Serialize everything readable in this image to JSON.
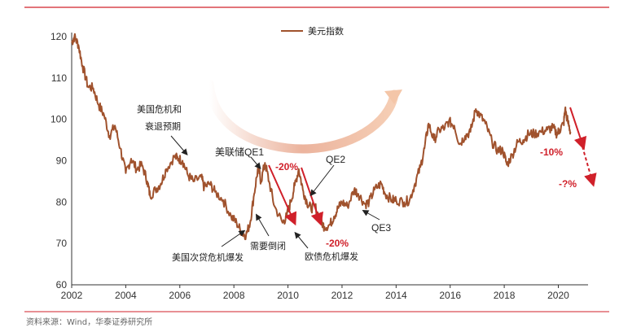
{
  "chart_data": {
    "type": "line",
    "title": "",
    "xlabel": "",
    "ylabel": "",
    "xlim": [
      2002,
      2021
    ],
    "ylim": [
      60,
      122
    ],
    "grid": false,
    "legend_position": "top-center",
    "x_ticks": [
      "2002",
      "2004",
      "2006",
      "2008",
      "2010",
      "2012",
      "2014",
      "2016",
      "2018",
      "2020"
    ],
    "y_ticks": [
      "60",
      "70",
      "80",
      "90",
      "100",
      "110",
      "120"
    ],
    "series": [
      {
        "name": "美元指数",
        "color": "#a0522d",
        "points": [
          [
            2002.0,
            118.5
          ],
          [
            2002.1,
            120.0
          ],
          [
            2002.25,
            118.0
          ],
          [
            2002.4,
            113.0
          ],
          [
            2002.6,
            108.0
          ],
          [
            2002.8,
            107.5
          ],
          [
            2003.0,
            103.5
          ],
          [
            2003.2,
            101.0
          ],
          [
            2003.4,
            96.0
          ],
          [
            2003.6,
            98.5
          ],
          [
            2003.8,
            93.0
          ],
          [
            2004.0,
            87.0
          ],
          [
            2004.2,
            90.5
          ],
          [
            2004.4,
            88.0
          ],
          [
            2004.6,
            89.0
          ],
          [
            2004.8,
            85.0
          ],
          [
            2004.9,
            81.5
          ],
          [
            2005.1,
            83.0
          ],
          [
            2005.3,
            84.5
          ],
          [
            2005.5,
            88.0
          ],
          [
            2005.8,
            91.0
          ],
          [
            2005.95,
            90.5
          ],
          [
            2006.1,
            90.0
          ],
          [
            2006.3,
            86.5
          ],
          [
            2006.5,
            85.0
          ],
          [
            2006.8,
            86.0
          ],
          [
            2006.9,
            83.5
          ],
          [
            2007.1,
            84.5
          ],
          [
            2007.3,
            82.5
          ],
          [
            2007.6,
            80.5
          ],
          [
            2007.9,
            76.5
          ],
          [
            2008.1,
            75.0
          ],
          [
            2008.3,
            72.5
          ],
          [
            2008.45,
            72.0
          ],
          [
            2008.6,
            75.0
          ],
          [
            2008.75,
            82.0
          ],
          [
            2008.9,
            88.5
          ],
          [
            2009.0,
            85.0
          ],
          [
            2009.15,
            89.5
          ],
          [
            2009.3,
            85.0
          ],
          [
            2009.5,
            79.0
          ],
          [
            2009.8,
            75.0
          ],
          [
            2009.95,
            76.5
          ],
          [
            2010.1,
            80.0
          ],
          [
            2010.25,
            84.0
          ],
          [
            2010.4,
            88.0
          ],
          [
            2010.55,
            83.0
          ],
          [
            2010.7,
            80.0
          ],
          [
            2010.85,
            78.5
          ],
          [
            2011.0,
            79.0
          ],
          [
            2011.2,
            75.5
          ],
          [
            2011.35,
            74.0
          ],
          [
            2011.55,
            74.5
          ],
          [
            2011.7,
            76.5
          ],
          [
            2011.85,
            78.5
          ],
          [
            2012.0,
            80.0
          ],
          [
            2012.2,
            79.0
          ],
          [
            2012.45,
            83.0
          ],
          [
            2012.6,
            82.0
          ],
          [
            2012.85,
            79.5
          ],
          [
            2013.0,
            80.0
          ],
          [
            2013.2,
            83.0
          ],
          [
            2013.45,
            84.5
          ],
          [
            2013.6,
            82.0
          ],
          [
            2013.85,
            80.5
          ],
          [
            2014.0,
            80.5
          ],
          [
            2014.3,
            80.0
          ],
          [
            2014.5,
            80.5
          ],
          [
            2014.7,
            84.5
          ],
          [
            2014.9,
            88.5
          ],
          [
            2015.05,
            93.0
          ],
          [
            2015.2,
            99.0
          ],
          [
            2015.4,
            95.0
          ],
          [
            2015.6,
            97.5
          ],
          [
            2015.8,
            98.0
          ],
          [
            2015.95,
            99.5
          ],
          [
            2016.15,
            98.5
          ],
          [
            2016.35,
            94.0
          ],
          [
            2016.55,
            96.0
          ],
          [
            2016.75,
            97.0
          ],
          [
            2016.95,
            102.5
          ],
          [
            2017.1,
            101.0
          ],
          [
            2017.3,
            99.0
          ],
          [
            2017.55,
            94.5
          ],
          [
            2017.75,
            92.5
          ],
          [
            2017.95,
            92.5
          ],
          [
            2018.1,
            89.0
          ],
          [
            2018.3,
            91.5
          ],
          [
            2018.5,
            94.5
          ],
          [
            2018.7,
            95.0
          ],
          [
            2018.9,
            96.5
          ],
          [
            2019.1,
            96.5
          ],
          [
            2019.35,
            97.0
          ],
          [
            2019.6,
            97.5
          ],
          [
            2019.8,
            98.0
          ],
          [
            2019.95,
            96.5
          ],
          [
            2020.05,
            97.5
          ],
          [
            2020.2,
            99.0
          ],
          [
            2020.25,
            102.5
          ],
          [
            2020.35,
            99.5
          ],
          [
            2020.45,
            97.0
          ]
        ]
      }
    ],
    "annotations": {
      "crisis_expect": [
        "美国危机和",
        "衰退预期"
      ],
      "fed_qe1": "美联储QE1",
      "qe2": "QE2",
      "qe3": "QE3",
      "subprime": "美国次贷危机爆发",
      "demand": "需要倒闭",
      "eurodebt": "欧债危机爆发",
      "drop1": "-20%",
      "drop2": "-20%",
      "drop3": "-10%",
      "drop4": "-?%"
    }
  },
  "source": "资料来源：Wind，华泰证券研究所",
  "colors": {
    "line": "#a0522d",
    "red": "#d0202a",
    "arc": "#f3c9b3",
    "rule": "#d0202a"
  }
}
